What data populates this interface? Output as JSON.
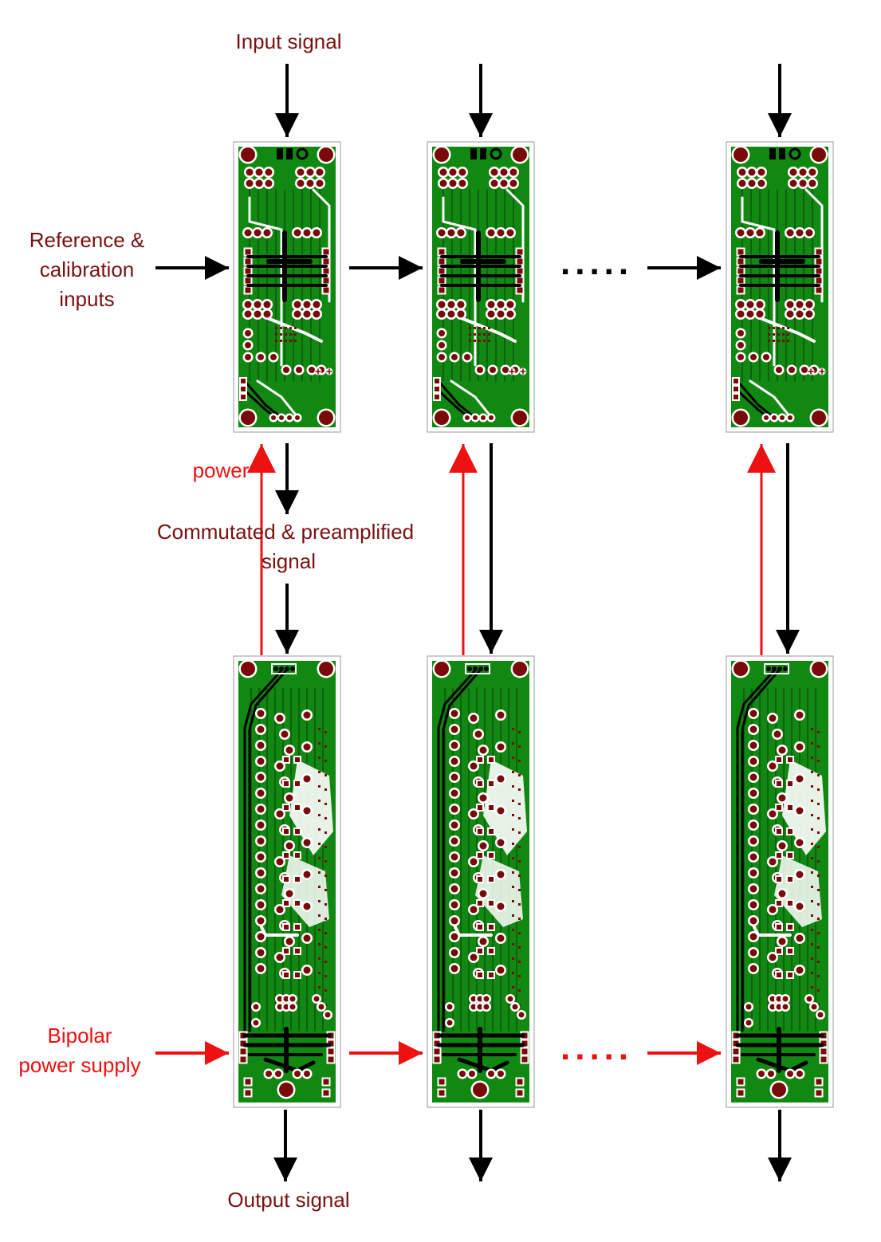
{
  "labels": {
    "input_signal": "Input signal",
    "reference_inputs_1": "Reference &",
    "reference_inputs_2": "calibration",
    "reference_inputs_3": "inputs",
    "power": "power",
    "commutated_1": "Commutated & preamplified",
    "commutated_2": "signal",
    "bipolar_1": "Bipolar",
    "bipolar_2": "power supply",
    "output_signal": "Output signal"
  },
  "ellipsis": ".....",
  "colors": {
    "label_dark": "#7a1010",
    "label_red": "#ee1111",
    "signal_arrow": "#000000",
    "power_arrow": "#ee1111",
    "board_green": "#118811",
    "pad": "#7a0a0a",
    "trace_white": "#ffffff",
    "trace_black": "#000000"
  }
}
